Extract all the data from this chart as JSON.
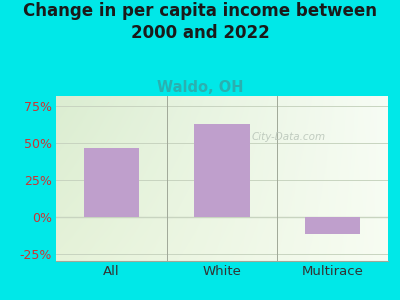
{
  "title": "Change in per capita income between\n2000 and 2022",
  "subtitle": "Waldo, OH",
  "categories": [
    "All",
    "White",
    "Multirace"
  ],
  "values": [
    47,
    63,
    -12
  ],
  "bar_color": "#bf9fcc",
  "title_fontsize": 12,
  "subtitle_fontsize": 10.5,
  "subtitle_color": "#2ab0b0",
  "title_color": "#1a1a1a",
  "background_color": "#00e8e8",
  "ylim": [
    -30,
    82
  ],
  "yticks": [
    -25,
    0,
    25,
    50,
    75
  ],
  "yticklabels": [
    "-25%",
    "0%",
    "25%",
    "50%",
    "75%"
  ],
  "watermark": "City-Data.com",
  "watermark_color": "#b8c4b8",
  "grid_color": "#c8d4c0",
  "tick_label_color": "#cc3333",
  "xtick_color": "#333333",
  "bar_width": 0.5
}
